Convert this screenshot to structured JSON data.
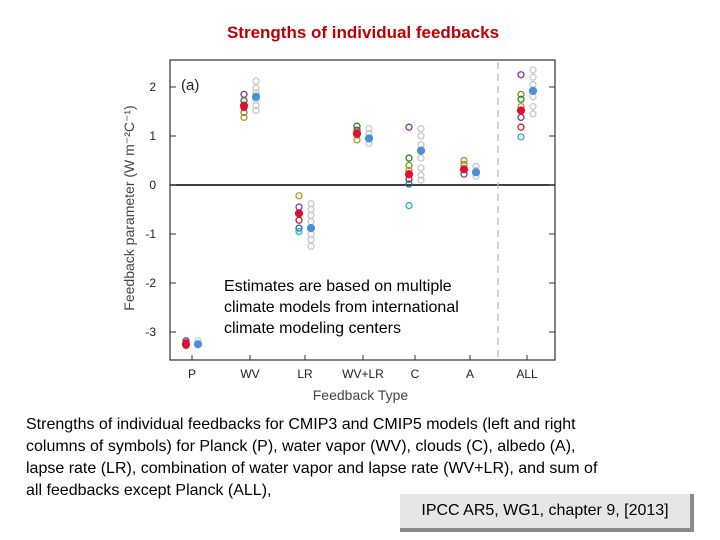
{
  "slide": {
    "title": "Strengths of individual feedbacks",
    "annotation_lines": [
      "Estimates are based on multiple",
      "climate models from international",
      "climate modeling centers"
    ],
    "caption_lines": [
      "Strengths of individual feedbacks for CMIP3 and CMIP5 models (left and right",
      "columns of symbols) for Planck (P), water vapor (WV), clouds (C), albedo (A),",
      "lapse rate (LR), combination of water vapor and lapse rate (WV+LR), and sum of",
      "all feedbacks except Planck (ALL),"
    ],
    "citation": "IPCC AR5, WG1, chapter 9, [2013]"
  },
  "chart_data": {
    "type": "scatter",
    "panel_label": "(a)",
    "xlabel": "Feedback Type",
    "ylabel": "Feedback parameter (W m⁻²C⁻¹)",
    "categories": [
      "P",
      "WV",
      "LR",
      "WV+LR",
      "C",
      "A",
      "ALL"
    ],
    "ylim": [
      -3.5,
      2.5
    ],
    "yticks": [
      -3,
      -2,
      -1,
      0,
      1,
      2
    ],
    "zero_line": true,
    "separator_before": "ALL",
    "colors": {
      "cmip3": "#c8c8c8",
      "mean_filled_left": "#e0102f",
      "mean_filled_right": "#4a90d9",
      "orange": "#c98b1a",
      "olive": "#8a8a20",
      "green": "#1a8a1a",
      "purple": "#7a3aa0",
      "darkred": "#b0203a",
      "blue": "#2e5fa8",
      "cyan": "#22b0c8"
    },
    "series": [
      {
        "name": "",
        "column": "left",
        "points": [
          {
            "category": "P",
            "y": -3.28,
            "color": "olive",
            "filled": false
          },
          {
            "category": "P",
            "y": -3.22,
            "color": "darkred",
            "filled": false
          },
          {
            "category": "P",
            "y": -3.18,
            "color": "purple",
            "filled": false
          },
          {
            "category": "P",
            "y": -3.25,
            "color": "mean_filled_left",
            "filled": true
          },
          {
            "category": "WV",
            "y": 1.38,
            "color": "orange",
            "filled": false
          },
          {
            "category": "WV",
            "y": 1.48,
            "color": "olive",
            "filled": false
          },
          {
            "category": "WV",
            "y": 1.58,
            "color": "darkred",
            "filled": false
          },
          {
            "category": "WV",
            "y": 1.72,
            "color": "green",
            "filled": false
          },
          {
            "category": "WV",
            "y": 1.85,
            "color": "purple",
            "filled": false
          },
          {
            "category": "WV",
            "y": 1.62,
            "color": "mean_filled_left",
            "filled": true
          },
          {
            "category": "LR",
            "y": -0.22,
            "color": "orange",
            "filled": false
          },
          {
            "category": "LR",
            "y": -0.45,
            "color": "purple",
            "filled": false
          },
          {
            "category": "LR",
            "y": -0.72,
            "color": "darkred",
            "filled": false
          },
          {
            "category": "LR",
            "y": -0.88,
            "color": "blue",
            "filled": false
          },
          {
            "category": "LR",
            "y": -0.95,
            "color": "cyan",
            "filled": false
          },
          {
            "category": "LR",
            "y": -0.58,
            "color": "mean_filled_left",
            "filled": true
          },
          {
            "category": "WV+LR",
            "y": 0.92,
            "color": "orange",
            "filled": false
          },
          {
            "category": "WV+LR",
            "y": 1.02,
            "color": "olive",
            "filled": false
          },
          {
            "category": "WV+LR",
            "y": 1.12,
            "color": "darkred",
            "filled": false
          },
          {
            "category": "WV+LR",
            "y": 1.2,
            "color": "green",
            "filled": false
          },
          {
            "category": "WV+LR",
            "y": 1.05,
            "color": "mean_filled_left",
            "filled": true
          },
          {
            "category": "C",
            "y": 1.18,
            "color": "purple",
            "filled": false
          },
          {
            "category": "C",
            "y": 0.55,
            "color": "green",
            "filled": false
          },
          {
            "category": "C",
            "y": 0.4,
            "color": "olive",
            "filled": false
          },
          {
            "category": "C",
            "y": 0.3,
            "color": "orange",
            "filled": false
          },
          {
            "category": "C",
            "y": 0.12,
            "color": "darkred",
            "filled": false
          },
          {
            "category": "C",
            "y": 0.02,
            "color": "blue",
            "filled": false
          },
          {
            "category": "C",
            "y": -0.42,
            "color": "cyan",
            "filled": false
          },
          {
            "category": "C",
            "y": 0.22,
            "color": "mean_filled_left",
            "filled": true
          },
          {
            "category": "A",
            "y": 0.5,
            "color": "orange",
            "filled": false
          },
          {
            "category": "A",
            "y": 0.42,
            "color": "olive",
            "filled": false
          },
          {
            "category": "A",
            "y": 0.22,
            "color": "purple",
            "filled": false
          },
          {
            "category": "A",
            "y": 0.32,
            "color": "mean_filled_left",
            "filled": true
          },
          {
            "category": "ALL",
            "y": 2.25,
            "color": "purple",
            "filled": false
          },
          {
            "category": "ALL",
            "y": 1.85,
            "color": "olive",
            "filled": false
          },
          {
            "category": "ALL",
            "y": 1.75,
            "color": "green",
            "filled": false
          },
          {
            "category": "ALL",
            "y": 1.6,
            "color": "orange",
            "filled": false
          },
          {
            "category": "ALL",
            "y": 1.38,
            "color": "purple",
            "filled": false
          },
          {
            "category": "ALL",
            "y": 1.18,
            "color": "darkred",
            "filled": false
          },
          {
            "category": "ALL",
            "y": 0.98,
            "color": "cyan",
            "filled": false
          },
          {
            "category": "ALL",
            "y": 1.52,
            "color": "mean_filled_left",
            "filled": true
          }
        ]
      },
      {
        "name": "",
        "column": "right",
        "points": [
          {
            "category": "P",
            "y": -3.18,
            "color": "cmip3",
            "filled": false
          },
          {
            "category": "P",
            "y": -3.25,
            "color": "mean_filled_right",
            "filled": true
          },
          {
            "category": "WV",
            "y": 2.12,
            "color": "cmip3",
            "filled": false
          },
          {
            "category": "WV",
            "y": 1.98,
            "color": "cmip3",
            "filled": false
          },
          {
            "category": "WV",
            "y": 1.88,
            "color": "cmip3",
            "filled": false
          },
          {
            "category": "WV",
            "y": 1.75,
            "color": "cmip3",
            "filled": false
          },
          {
            "category": "WV",
            "y": 1.62,
            "color": "cmip3",
            "filled": false
          },
          {
            "category": "WV",
            "y": 1.52,
            "color": "cmip3",
            "filled": false
          },
          {
            "category": "WV",
            "y": 1.8,
            "color": "mean_filled_right",
            "filled": true
          },
          {
            "category": "LR",
            "y": -0.38,
            "color": "cmip3",
            "filled": false
          },
          {
            "category": "LR",
            "y": -0.5,
            "color": "cmip3",
            "filled": false
          },
          {
            "category": "LR",
            "y": -0.62,
            "color": "cmip3",
            "filled": false
          },
          {
            "category": "LR",
            "y": -0.75,
            "color": "cmip3",
            "filled": false
          },
          {
            "category": "LR",
            "y": -0.88,
            "color": "cmip3",
            "filled": false
          },
          {
            "category": "LR",
            "y": -1.0,
            "color": "cmip3",
            "filled": false
          },
          {
            "category": "LR",
            "y": -1.12,
            "color": "cmip3",
            "filled": false
          },
          {
            "category": "LR",
            "y": -1.25,
            "color": "cmip3",
            "filled": false
          },
          {
            "category": "LR",
            "y": -0.88,
            "color": "mean_filled_right",
            "filled": true
          },
          {
            "category": "WV+LR",
            "y": 1.15,
            "color": "cmip3",
            "filled": false
          },
          {
            "category": "WV+LR",
            "y": 1.05,
            "color": "cmip3",
            "filled": false
          },
          {
            "category": "WV+LR",
            "y": 0.95,
            "color": "cmip3",
            "filled": false
          },
          {
            "category": "WV+LR",
            "y": 0.85,
            "color": "cmip3",
            "filled": false
          },
          {
            "category": "WV+LR",
            "y": 0.95,
            "color": "mean_filled_right",
            "filled": true
          },
          {
            "category": "C",
            "y": 1.15,
            "color": "cmip3",
            "filled": false
          },
          {
            "category": "C",
            "y": 1.0,
            "color": "cmip3",
            "filled": false
          },
          {
            "category": "C",
            "y": 0.82,
            "color": "cmip3",
            "filled": false
          },
          {
            "category": "C",
            "y": 0.55,
            "color": "cmip3",
            "filled": false
          },
          {
            "category": "C",
            "y": 0.35,
            "color": "cmip3",
            "filled": false
          },
          {
            "category": "C",
            "y": 0.2,
            "color": "cmip3",
            "filled": false
          },
          {
            "category": "C",
            "y": 0.1,
            "color": "cmip3",
            "filled": false
          },
          {
            "category": "C",
            "y": 0.7,
            "color": "mean_filled_right",
            "filled": true
          },
          {
            "category": "A",
            "y": 0.38,
            "color": "cmip3",
            "filled": false
          },
          {
            "category": "A",
            "y": 0.3,
            "color": "cmip3",
            "filled": false
          },
          {
            "category": "A",
            "y": 0.18,
            "color": "cmip3",
            "filled": false
          },
          {
            "category": "A",
            "y": 0.26,
            "color": "mean_filled_right",
            "filled": true
          },
          {
            "category": "ALL",
            "y": 2.35,
            "color": "cmip3",
            "filled": false
          },
          {
            "category": "ALL",
            "y": 2.2,
            "color": "cmip3",
            "filled": false
          },
          {
            "category": "ALL",
            "y": 2.05,
            "color": "cmip3",
            "filled": false
          },
          {
            "category": "ALL",
            "y": 1.8,
            "color": "cmip3",
            "filled": false
          },
          {
            "category": "ALL",
            "y": 1.6,
            "color": "cmip3",
            "filled": false
          },
          {
            "category": "ALL",
            "y": 1.45,
            "color": "cmip3",
            "filled": false
          },
          {
            "category": "ALL",
            "y": 1.92,
            "color": "mean_filled_right",
            "filled": true
          }
        ]
      }
    ]
  }
}
